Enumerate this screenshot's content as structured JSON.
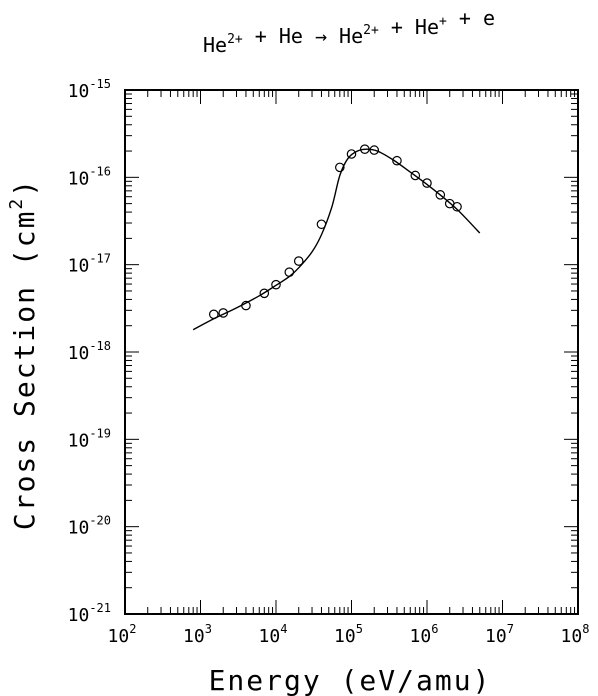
{
  "chart_data": {
    "type": "scatter",
    "title": {
      "parts": [
        {
          "t": "He",
          "sup": "2+"
        },
        {
          "t": " + He → He",
          "sup": "2+"
        },
        {
          "t": " + He",
          "sup": "+"
        },
        {
          "t": " + e",
          "sup": ""
        }
      ]
    },
    "xlabel": "Energy (eV/amu)",
    "ylabel": {
      "text": "Cross Section (cm",
      "sup": "2",
      "end": ")"
    },
    "x_scale": "log",
    "y_scale": "log",
    "xlim": [
      100,
      100000000
    ],
    "ylim": [
      1e-21,
      1e-15
    ],
    "x_ticks": [
      {
        "base": "10",
        "exp": "2"
      },
      {
        "base": "10",
        "exp": "3"
      },
      {
        "base": "10",
        "exp": "4"
      },
      {
        "base": "10",
        "exp": "5"
      },
      {
        "base": "10",
        "exp": "6"
      },
      {
        "base": "10",
        "exp": "7"
      },
      {
        "base": "10",
        "exp": "8"
      }
    ],
    "y_ticks": [
      {
        "base": "10",
        "exp": "-21"
      },
      {
        "base": "10",
        "exp": "-20"
      },
      {
        "base": "10",
        "exp": "-19"
      },
      {
        "base": "10",
        "exp": "-18"
      },
      {
        "base": "10",
        "exp": "-17"
      },
      {
        "base": "10",
        "exp": "-16"
      },
      {
        "base": "10",
        "exp": "-15"
      }
    ],
    "series": [
      {
        "kind": "line",
        "points": [
          [
            800,
            1.8e-18
          ],
          [
            1500,
            2.4e-18
          ],
          [
            3000,
            3.2e-18
          ],
          [
            6000,
            4.4e-18
          ],
          [
            10000,
            5.8e-18
          ],
          [
            15000,
            7.3e-18
          ],
          [
            20000,
            9.2e-18
          ],
          [
            30000,
            1.4e-17
          ],
          [
            40000,
            2.2e-17
          ],
          [
            55000,
            4.6e-17
          ],
          [
            70000,
            1.05e-16
          ],
          [
            90000,
            1.65e-16
          ],
          [
            120000,
            2e-16
          ],
          [
            160000,
            2.1e-16
          ],
          [
            220000,
            2e-16
          ],
          [
            350000,
            1.6e-16
          ],
          [
            600000,
            1.15e-16
          ],
          [
            1000000,
            8.3e-17
          ],
          [
            1600000,
            6e-17
          ],
          [
            2500000,
            4.3e-17
          ],
          [
            3500000,
            3.2e-17
          ],
          [
            5000000,
            2.3e-17
          ]
        ]
      },
      {
        "kind": "markers",
        "marker": "open-circle",
        "points": [
          [
            1500,
            2.7e-18
          ],
          [
            2000,
            2.8e-18
          ],
          [
            4000,
            3.4e-18
          ],
          [
            7000,
            4.7e-18
          ],
          [
            10000,
            5.9e-18
          ],
          [
            15000,
            8.2e-18
          ],
          [
            20000,
            1.1e-17
          ],
          [
            40000,
            2.9e-17
          ],
          [
            70000,
            1.3e-16
          ],
          [
            100000,
            1.85e-16
          ],
          [
            150000,
            2.1e-16
          ],
          [
            200000,
            2.05e-16
          ],
          [
            400000,
            1.55e-16
          ],
          [
            700000,
            1.05e-16
          ],
          [
            1000000,
            8.6e-17
          ],
          [
            1500000,
            6.3e-17
          ],
          [
            2000000,
            5e-17
          ],
          [
            2500000,
            4.6e-17
          ]
        ]
      }
    ],
    "grid": false
  }
}
